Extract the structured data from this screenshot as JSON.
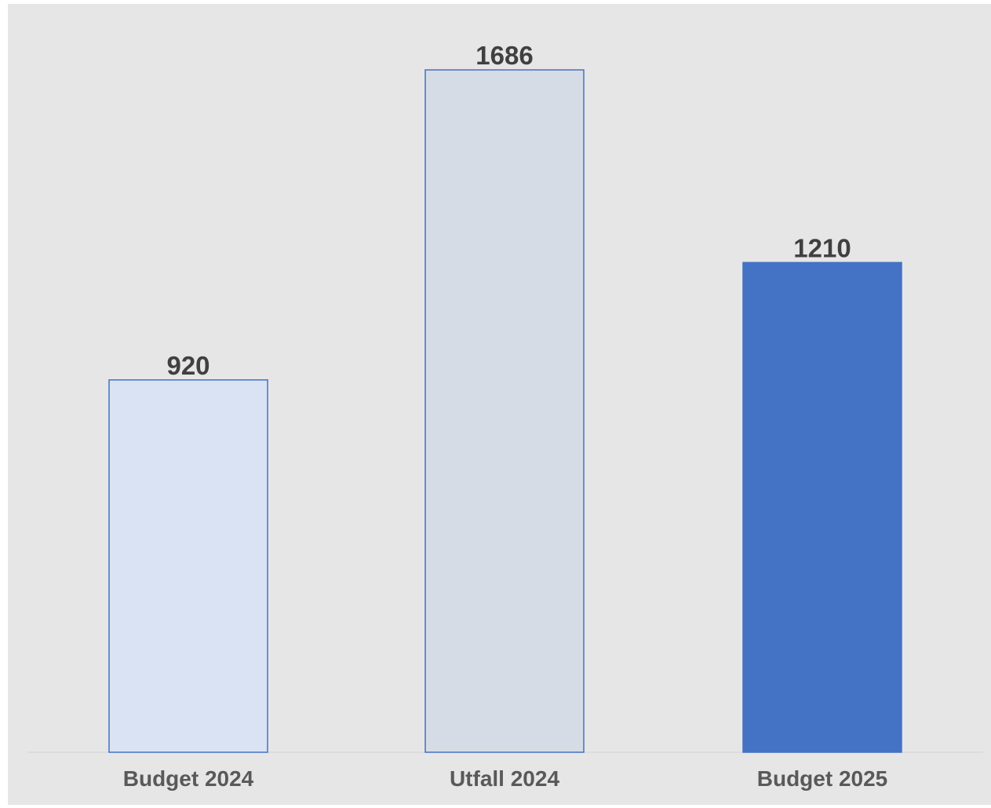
{
  "chart_data": {
    "type": "bar",
    "title": "",
    "xlabel": "",
    "ylabel": "",
    "categories": [
      "Budget 2024",
      "Utfall 2024",
      "Budget 2025"
    ],
    "values": [
      920,
      1686,
      1210
    ],
    "data_labels": [
      "920",
      "1686",
      "1210"
    ],
    "ylim": [
      0,
      1686
    ],
    "grid": false,
    "legend": "none",
    "bar_styles": [
      {
        "fill": "#dae3f3",
        "stroke": "#4472c4"
      },
      {
        "fill": "#d6dce5",
        "stroke": "#4472c4"
      },
      {
        "fill": "#4472c4",
        "stroke": "#4472c4"
      }
    ],
    "colors": {
      "background": "#e6e6e6",
      "axis": "#d9d9d9",
      "value_text": "#404040",
      "category_text": "#595959"
    }
  }
}
